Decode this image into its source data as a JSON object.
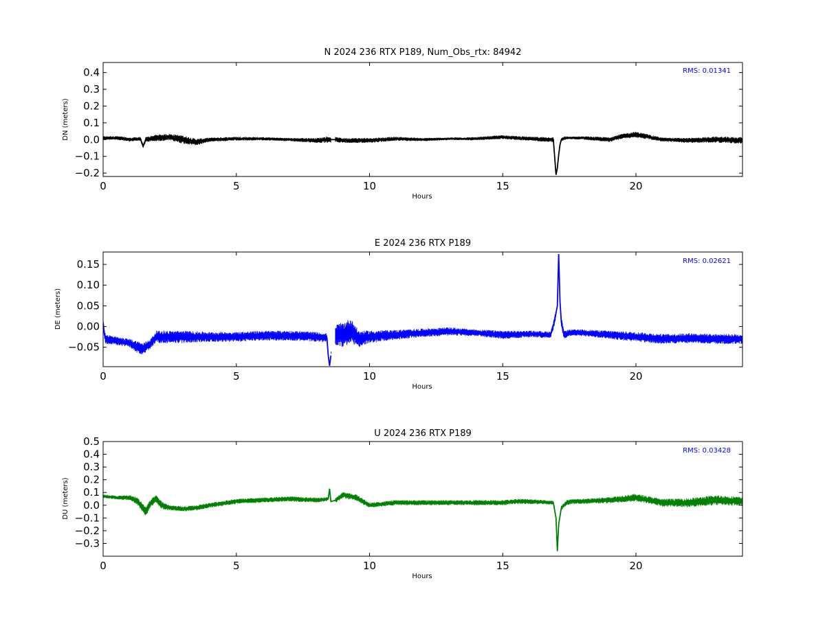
{
  "chart_data": [
    {
      "type": "line",
      "title": "N 2024 236 RTX  P189, Num_Obs_rtx: 84942",
      "xlabel": "Hours",
      "ylabel": "DN (meters)",
      "xlim": [
        0,
        24
      ],
      "ylim": [
        -0.22,
        0.46
      ],
      "xticks": [
        0,
        5,
        10,
        15,
        20
      ],
      "xtick_labels": [
        "0",
        "5",
        "10",
        "15",
        "20"
      ],
      "yticks": [
        -0.2,
        -0.1,
        0.0,
        0.1,
        0.2,
        0.3,
        0.4
      ],
      "ytick_labels": [
        "−0.2",
        "−0.1",
        "0.0",
        "0.1",
        "0.2",
        "0.3",
        "0.4"
      ],
      "rms_text": "RMS:  0.01341",
      "grid": false,
      "series": [
        {
          "color": "#000000",
          "x": [
            0,
            0.5,
            1.0,
            1.4,
            1.5,
            1.6,
            2.0,
            2.5,
            3.0,
            3.5,
            4.0,
            5.0,
            6.0,
            7.0,
            8.0,
            8.5,
            8.75,
            9.0,
            10.0,
            11.0,
            12.0,
            13.0,
            14.0,
            15.0,
            16.0,
            16.9,
            17.0,
            17.05,
            17.1,
            17.15,
            17.2,
            17.35,
            17.5,
            18.0,
            18.5,
            19.0,
            19.5,
            20.0,
            20.5,
            21.0,
            22.0,
            23.0,
            24.0
          ],
          "y": [
            0.01,
            0.01,
            0.0,
            0.005,
            -0.04,
            0.0,
            0.01,
            0.015,
            0.0,
            -0.015,
            0.0,
            0.005,
            0.005,
            0.0,
            -0.005,
            0.0,
            0.0,
            -0.005,
            -0.005,
            0.005,
            0.0,
            0.005,
            0.005,
            0.015,
            0.005,
            0.0,
            -0.21,
            -0.17,
            -0.09,
            -0.03,
            0.0,
            0.01,
            0.01,
            0.01,
            0.005,
            0.0,
            0.02,
            0.03,
            0.015,
            0.0,
            -0.005,
            0.0,
            -0.005
          ],
          "spread": [
            0.01,
            0.012,
            0.012,
            0.012,
            0.01,
            0.015,
            0.02,
            0.02,
            0.025,
            0.02,
            0.012,
            0.012,
            0.01,
            0.01,
            0.015,
            0.02,
            0.015,
            0.015,
            0.015,
            0.012,
            0.01,
            0.008,
            0.01,
            0.012,
            0.012,
            0.015,
            0.0,
            0.0,
            0.0,
            0.0,
            0.01,
            0.01,
            0.008,
            0.01,
            0.012,
            0.015,
            0.015,
            0.018,
            0.015,
            0.012,
            0.015,
            0.018,
            0.02
          ],
          "gaps": [
            [
              8.55,
              8.72
            ]
          ]
        }
      ]
    },
    {
      "type": "line",
      "title": "E 2024 236 RTX  P189",
      "xlabel": "Hours",
      "ylabel": "DE (meters)",
      "xlim": [
        0,
        24
      ],
      "ylim": [
        -0.097,
        0.18
      ],
      "xticks": [
        0,
        5,
        10,
        15,
        20
      ],
      "xtick_labels": [
        "0",
        "5",
        "10",
        "15",
        "20"
      ],
      "yticks": [
        -0.05,
        0.0,
        0.05,
        0.1,
        0.15
      ],
      "ytick_labels": [
        "−0.05",
        "0.00",
        "0.05",
        "0.10",
        "0.15"
      ],
      "rms_text": "RMS:  0.02621",
      "grid": false,
      "series": [
        {
          "color": "#0000ff",
          "x": [
            0,
            0.05,
            0.1,
            0.5,
            1.0,
            1.3,
            1.5,
            1.8,
            2.0,
            2.2,
            3.0,
            4.0,
            5.0,
            6.0,
            7.0,
            8.0,
            8.4,
            8.45,
            8.5,
            8.55,
            8.6,
            8.75,
            9.0,
            9.3,
            9.6,
            10.0,
            11.0,
            12.0,
            13.0,
            14.0,
            15.0,
            16.0,
            16.8,
            16.95,
            17.05,
            17.1,
            17.15,
            17.2,
            17.3,
            17.5,
            18.0,
            19.0,
            20.0,
            21.0,
            22.0,
            23.0,
            24.0
          ],
          "y": [
            0.01,
            -0.02,
            -0.03,
            -0.035,
            -0.04,
            -0.05,
            -0.055,
            -0.04,
            -0.025,
            -0.025,
            -0.025,
            -0.025,
            -0.025,
            -0.022,
            -0.022,
            -0.025,
            -0.027,
            -0.07,
            -0.095,
            -0.07,
            -0.04,
            -0.02,
            -0.02,
            -0.01,
            -0.03,
            -0.025,
            -0.02,
            -0.015,
            -0.012,
            -0.015,
            -0.02,
            -0.018,
            -0.02,
            0.015,
            0.05,
            0.175,
            0.06,
            0.01,
            -0.02,
            -0.015,
            -0.015,
            -0.02,
            -0.025,
            -0.03,
            -0.028,
            -0.03,
            -0.03
          ],
          "spread": [
            0.01,
            0.012,
            0.012,
            0.01,
            0.01,
            0.015,
            0.015,
            0.012,
            0.015,
            0.015,
            0.015,
            0.012,
            0.012,
            0.012,
            0.012,
            0.012,
            0.01,
            0.0,
            0.0,
            0.0,
            0.02,
            0.025,
            0.03,
            0.03,
            0.02,
            0.015,
            0.012,
            0.01,
            0.01,
            0.008,
            0.01,
            0.008,
            0.008,
            0.012,
            0.0,
            0.0,
            0.0,
            0.012,
            0.01,
            0.008,
            0.008,
            0.01,
            0.012,
            0.012,
            0.012,
            0.012,
            0.012
          ],
          "gaps": [
            [
              8.56,
              8.72
            ]
          ]
        }
      ]
    },
    {
      "type": "line",
      "title": "U 2024 236 RTX  P189",
      "xlabel": "Hours",
      "ylabel": "DU (meters)",
      "xlim": [
        0,
        24
      ],
      "ylim": [
        -0.4,
        0.5
      ],
      "xticks": [
        0,
        5,
        10,
        15,
        20
      ],
      "xtick_labels": [
        "0",
        "5",
        "10",
        "15",
        "20"
      ],
      "yticks": [
        -0.3,
        -0.2,
        -0.1,
        0.0,
        0.1,
        0.2,
        0.3,
        0.4,
        0.5
      ],
      "ytick_labels": [
        "−0.3",
        "−0.2",
        "−0.1",
        "0.0",
        "0.1",
        "0.2",
        "0.3",
        "0.4",
        "0.5"
      ],
      "rms_text": "RMS:  0.03428",
      "grid": false,
      "series": [
        {
          "color": "#008000",
          "x": [
            0,
            0.5,
            1.0,
            1.3,
            1.6,
            1.8,
            2.0,
            2.2,
            2.5,
            3.0,
            3.5,
            4.0,
            5.0,
            6.0,
            7.0,
            8.0,
            8.45,
            8.5,
            8.55,
            8.75,
            9.0,
            9.5,
            10.0,
            11.0,
            12.0,
            13.0,
            14.0,
            15.0,
            15.5,
            16.0,
            16.9,
            17.0,
            17.05,
            17.1,
            17.2,
            17.4,
            17.6,
            18.0,
            19.0,
            20.0,
            21.0,
            22.0,
            23.0,
            24.0
          ],
          "y": [
            0.07,
            0.06,
            0.06,
            0.03,
            -0.05,
            0.02,
            0.05,
            0.0,
            -0.02,
            -0.03,
            -0.02,
            0.0,
            0.03,
            0.04,
            0.05,
            0.04,
            0.05,
            0.13,
            0.03,
            0.04,
            0.08,
            0.06,
            0.0,
            0.02,
            0.02,
            0.02,
            0.02,
            0.02,
            0.03,
            0.03,
            0.02,
            -0.1,
            -0.36,
            -0.15,
            -0.02,
            0.02,
            0.03,
            0.03,
            0.04,
            0.06,
            0.02,
            0.02,
            0.04,
            0.03
          ],
          "spread": [
            0.015,
            0.015,
            0.02,
            0.03,
            0.04,
            0.03,
            0.03,
            0.03,
            0.02,
            0.02,
            0.02,
            0.02,
            0.02,
            0.02,
            0.02,
            0.02,
            0.015,
            0.0,
            0.015,
            0.02,
            0.025,
            0.025,
            0.02,
            0.02,
            0.02,
            0.02,
            0.02,
            0.02,
            0.02,
            0.02,
            0.015,
            0.0,
            0.0,
            0.0,
            0.02,
            0.02,
            0.02,
            0.02,
            0.025,
            0.03,
            0.03,
            0.035,
            0.04,
            0.035
          ],
          "gaps": [
            [
              8.56,
              8.72
            ]
          ]
        }
      ]
    }
  ]
}
